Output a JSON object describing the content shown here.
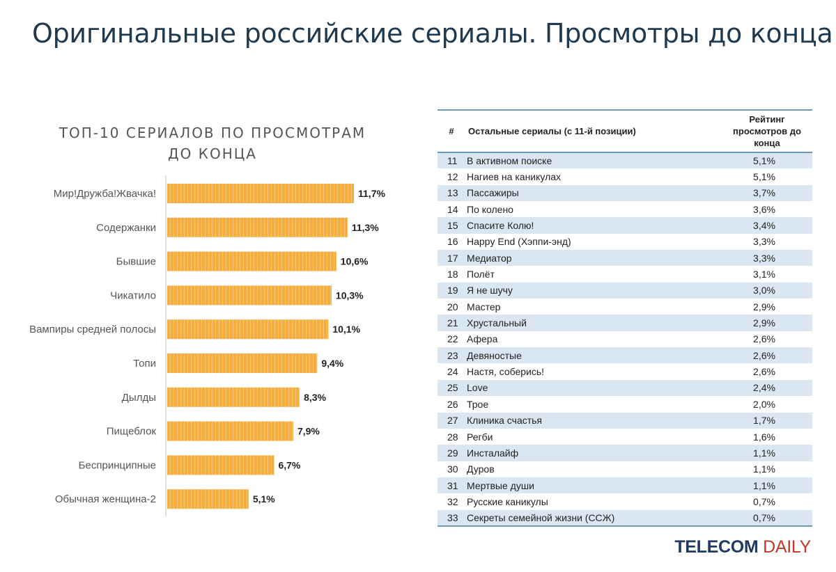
{
  "title": "Оригинальные российские сериалы. Просмотры до конца",
  "chart_data": {
    "type": "bar",
    "orientation": "horizontal",
    "title_lines": [
      "ТОП-10 СЕРИАЛОВ ПО ПРОСМОТРАМ",
      "ДО КОНЦА"
    ],
    "categories": [
      "Мир!Дружба!Жвачка!",
      "Содержанки",
      "Бывшие",
      "Чикатило",
      "Вампиры средней полосы",
      "Топи",
      "Дылды",
      "Пищеблок",
      "Беспринципные",
      "Обычная женщина-2"
    ],
    "values": [
      11.7,
      11.3,
      10.6,
      10.3,
      10.1,
      9.4,
      8.3,
      7.9,
      6.7,
      5.1
    ],
    "value_labels": [
      "11,7%",
      "11,3%",
      "10,6%",
      "10,3%",
      "10,1%",
      "9,4%",
      "8,3%",
      "7,9%",
      "6,7%",
      "5,1%"
    ],
    "unit": "%",
    "bar_color": "#f4ad3f",
    "grid": false
  },
  "table": {
    "headers": {
      "num": "#",
      "name": "Остальные сериалы (с 11-й позиции)",
      "rating_lines": [
        "Рейтинг",
        "просмотров до",
        "конца"
      ]
    },
    "rows": [
      {
        "num": "11",
        "name": "В активном поиске",
        "rating": "5,1%"
      },
      {
        "num": "12",
        "name": "Нагиев на каникулах",
        "rating": "5,1%"
      },
      {
        "num": "13",
        "name": "Пассажиры",
        "rating": "3,7%"
      },
      {
        "num": "14",
        "name": "По колено",
        "rating": "3,6%"
      },
      {
        "num": "15",
        "name": "Спасите Колю!",
        "rating": "3,4%"
      },
      {
        "num": "16",
        "name": "Happy End (Хэппи-энд)",
        "rating": "3,3%"
      },
      {
        "num": "17",
        "name": "Медиатор",
        "rating": "3,3%"
      },
      {
        "num": "18",
        "name": "Полёт",
        "rating": "3,1%"
      },
      {
        "num": "19",
        "name": "Я не шучу",
        "rating": "3,0%"
      },
      {
        "num": "20",
        "name": "Мастер",
        "rating": "2,9%"
      },
      {
        "num": "21",
        "name": "Хрустальный",
        "rating": "2,9%"
      },
      {
        "num": "22",
        "name": "Афера",
        "rating": "2,6%"
      },
      {
        "num": "23",
        "name": "Девяностые",
        "rating": "2,6%"
      },
      {
        "num": "24",
        "name": "Настя, соберись!",
        "rating": "2,6%"
      },
      {
        "num": "25",
        "name": "Love",
        "rating": "2,4%"
      },
      {
        "num": "26",
        "name": "Трое",
        "rating": "2,0%"
      },
      {
        "num": "27",
        "name": "Клиника счастья",
        "rating": "1,7%"
      },
      {
        "num": "28",
        "name": "Регби",
        "rating": "1,6%"
      },
      {
        "num": "29",
        "name": "Инсталайф",
        "rating": "1,1%"
      },
      {
        "num": "30",
        "name": "Дуров",
        "rating": "1,1%"
      },
      {
        "num": "31",
        "name": "Мертвые души",
        "rating": "1,1%"
      },
      {
        "num": "32",
        "name": "Русские каникулы",
        "rating": "0,7%"
      },
      {
        "num": "33",
        "name": "Секреты семейной жизни (ССЖ)",
        "rating": "0,7%"
      }
    ],
    "stripe_color": "#dae6f1",
    "rule_color": "#6a9ab8"
  },
  "logo": {
    "part1": "TELECOM",
    "part2": "DAILY"
  }
}
